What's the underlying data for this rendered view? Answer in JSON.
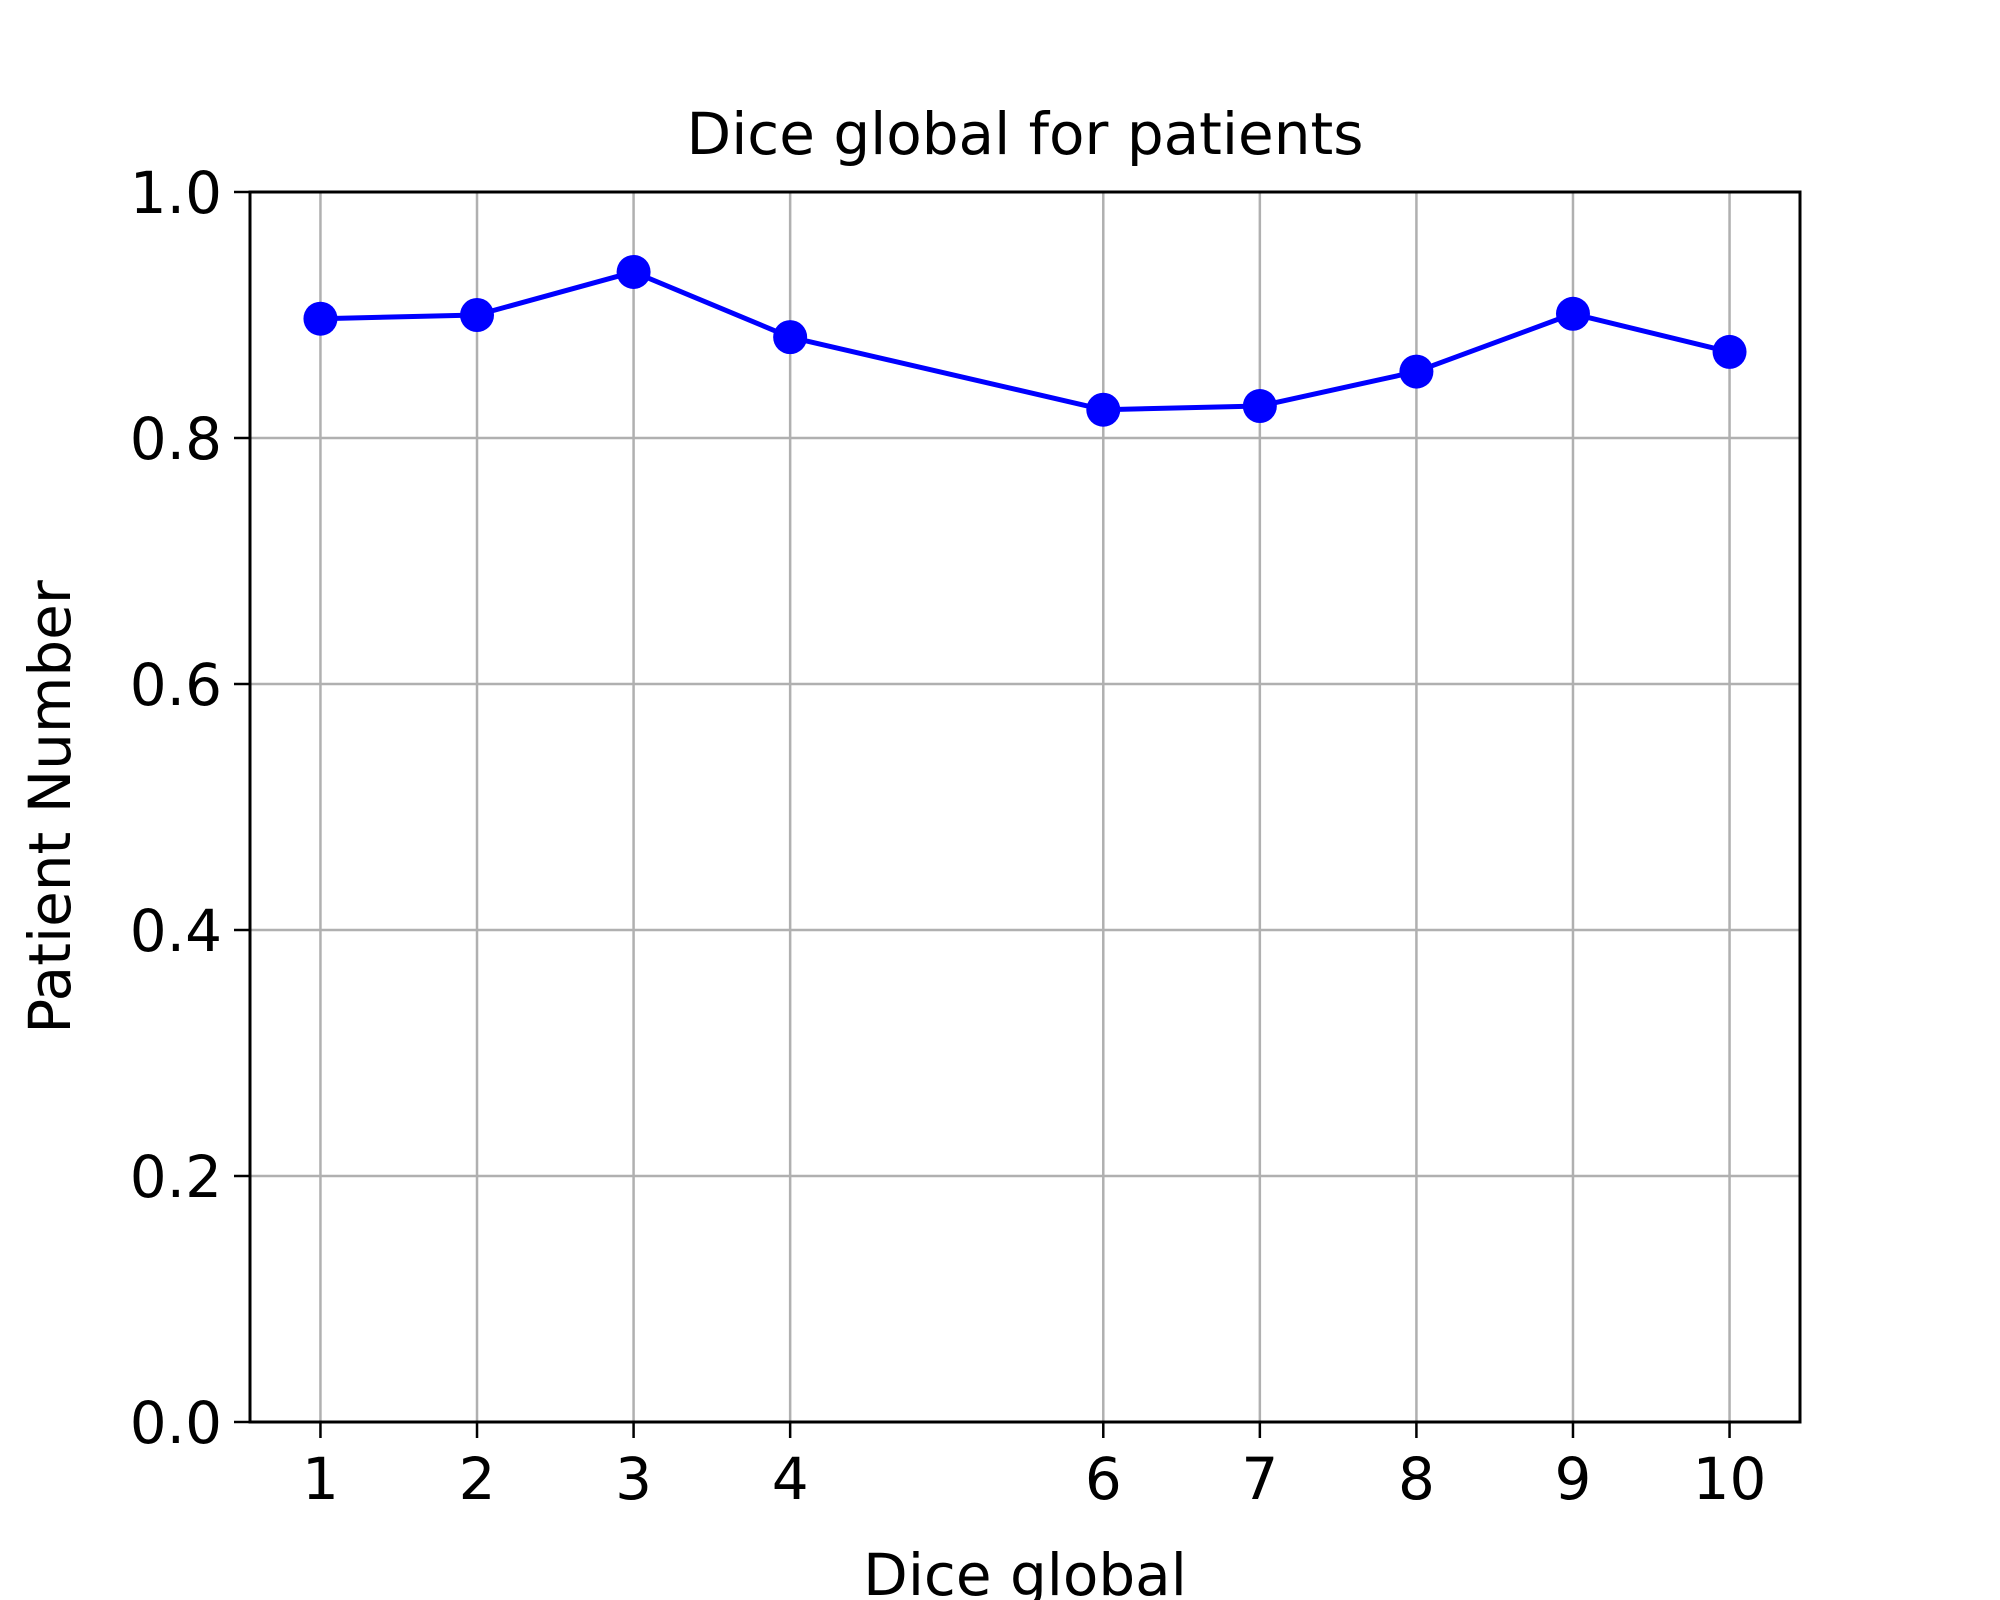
{
  "chart_data": {
    "type": "line",
    "title": "Dice global for patients",
    "xlabel": "Dice global",
    "ylabel": "Patient Number",
    "x": [
      1,
      2,
      3,
      4,
      6,
      7,
      8,
      9,
      10
    ],
    "series": [
      {
        "values": [
          0.897,
          0.9,
          0.935,
          0.882,
          0.823,
          0.826,
          0.854,
          0.901,
          0.87
        ],
        "color": "#0000ff",
        "marker": "circle"
      }
    ],
    "xticks": [
      1,
      2,
      3,
      4,
      6,
      7,
      8,
      9,
      10
    ],
    "xtick_labels": [
      "1",
      "2",
      "3",
      "4",
      "6",
      "7",
      "8",
      "9",
      "10"
    ],
    "yticks": [
      0.0,
      0.2,
      0.4,
      0.6,
      0.8,
      1.0
    ],
    "ytick_labels": [
      "0.0",
      "0.2",
      "0.4",
      "0.6",
      "0.8",
      "1.0"
    ],
    "xlim": [
      0.55,
      10.45
    ],
    "ylim": [
      0,
      1
    ],
    "grid": true,
    "grid_color": "#b0b0b0"
  }
}
